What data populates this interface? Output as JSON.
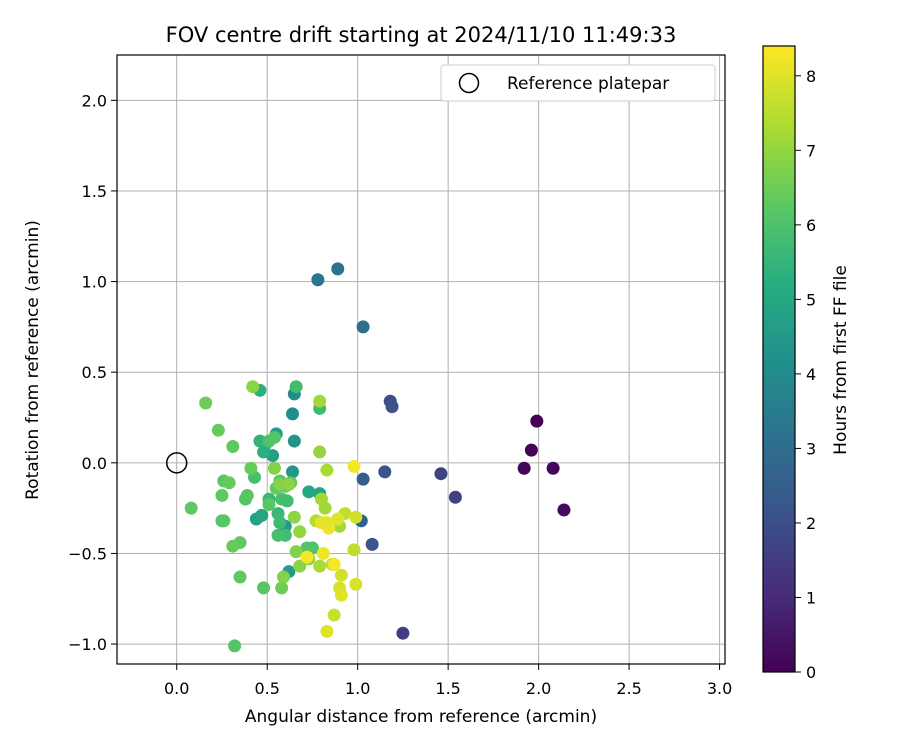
{
  "chart_data": {
    "type": "scatter",
    "title": "FOV centre drift starting at 2024/11/10 11:49:33",
    "xlabel": "Angular distance from reference (arcmin)",
    "ylabel": "Rotation from reference (arcmin)",
    "xlim": [
      -0.33,
      3.03
    ],
    "ylim": [
      -1.11,
      2.25
    ],
    "xticks": [
      0.0,
      0.5,
      1.0,
      1.5,
      2.0,
      2.5,
      3.0
    ],
    "xtick_labels": [
      "0.0",
      "0.5",
      "1.0",
      "1.5",
      "2.0",
      "2.5",
      "3.0"
    ],
    "yticks": [
      -1.0,
      -0.5,
      0.0,
      0.5,
      1.0,
      1.5,
      2.0
    ],
    "ytick_labels": [
      "−1.0",
      "−0.5",
      "0.0",
      "0.5",
      "1.0",
      "1.5",
      "2.0"
    ],
    "grid": true,
    "legend": {
      "position": "top-right",
      "entries": [
        "Reference platepar"
      ]
    },
    "reference_point": {
      "x": 0.0,
      "y": 0.0,
      "label": "Reference platepar"
    },
    "colorbar": {
      "label": "Hours from first FF file",
      "range": [
        0,
        8.4
      ],
      "ticks": [
        0,
        1,
        2,
        3,
        4,
        5,
        6,
        7,
        8
      ],
      "colormap": "viridis"
    },
    "points": [
      {
        "x": 1.99,
        "y": 0.23,
        "t": 0.05
      },
      {
        "x": 1.96,
        "y": 0.07,
        "t": 0.08
      },
      {
        "x": 1.92,
        "y": -0.03,
        "t": 0.12
      },
      {
        "x": 2.08,
        "y": -0.03,
        "t": 0.15
      },
      {
        "x": 2.14,
        "y": -0.26,
        "t": 0.2
      },
      {
        "x": 1.25,
        "y": -0.94,
        "t": 1.5
      },
      {
        "x": 1.54,
        "y": -0.19,
        "t": 1.6
      },
      {
        "x": 1.46,
        "y": -0.06,
        "t": 1.7
      },
      {
        "x": 1.18,
        "y": 0.34,
        "t": 2.0
      },
      {
        "x": 1.19,
        "y": 0.31,
        "t": 2.1
      },
      {
        "x": 1.15,
        "y": -0.05,
        "t": 2.2
      },
      {
        "x": 1.08,
        "y": -0.45,
        "t": 2.3
      },
      {
        "x": 1.02,
        "y": -0.32,
        "t": 2.6
      },
      {
        "x": 1.03,
        "y": -0.09,
        "t": 2.5
      },
      {
        "x": 1.03,
        "y": 0.75,
        "t": 3.1
      },
      {
        "x": 0.89,
        "y": 1.07,
        "t": 3.2
      },
      {
        "x": 0.78,
        "y": 1.01,
        "t": 3.3
      },
      {
        "x": 0.65,
        "y": 0.38,
        "t": 4.0
      },
      {
        "x": 0.64,
        "y": 0.27,
        "t": 4.1
      },
      {
        "x": 0.65,
        "y": 0.12,
        "t": 4.3
      },
      {
        "x": 0.64,
        "y": -0.05,
        "t": 4.4
      },
      {
        "x": 0.55,
        "y": 0.16,
        "t": 4.6
      },
      {
        "x": 0.53,
        "y": 0.04,
        "t": 4.7
      },
      {
        "x": 0.6,
        "y": -0.35,
        "t": 4.5
      },
      {
        "x": 0.62,
        "y": -0.6,
        "t": 4.6
      },
      {
        "x": 0.44,
        "y": -0.31,
        "t": 4.8
      },
      {
        "x": 0.47,
        "y": -0.29,
        "t": 4.9
      },
      {
        "x": 0.79,
        "y": -0.17,
        "t": 4.9
      },
      {
        "x": 0.73,
        "y": -0.16,
        "t": 5.0
      },
      {
        "x": 0.46,
        "y": 0.4,
        "t": 5.3
      },
      {
        "x": 0.46,
        "y": 0.12,
        "t": 5.5
      },
      {
        "x": 0.49,
        "y": 0.1,
        "t": 5.4
      },
      {
        "x": 0.48,
        "y": 0.06,
        "t": 5.3
      },
      {
        "x": 0.51,
        "y": -0.2,
        "t": 5.6
      },
      {
        "x": 0.56,
        "y": -0.28,
        "t": 5.6
      },
      {
        "x": 0.57,
        "y": -0.33,
        "t": 5.7
      },
      {
        "x": 0.6,
        "y": -0.4,
        "t": 5.8
      },
      {
        "x": 0.56,
        "y": -0.4,
        "t": 5.9
      },
      {
        "x": 0.58,
        "y": -0.2,
        "t": 5.9
      },
      {
        "x": 0.61,
        "y": -0.21,
        "t": 5.8
      },
      {
        "x": 0.43,
        "y": -0.08,
        "t": 5.9
      },
      {
        "x": 0.66,
        "y": 0.42,
        "t": 5.8
      },
      {
        "x": 0.79,
        "y": 0.3,
        "t": 5.7
      },
      {
        "x": 0.51,
        "y": 0.12,
        "t": 6.0
      },
      {
        "x": 0.54,
        "y": 0.14,
        "t": 6.1
      },
      {
        "x": 0.57,
        "y": -0.1,
        "t": 6.2
      },
      {
        "x": 0.55,
        "y": -0.14,
        "t": 6.3
      },
      {
        "x": 0.6,
        "y": -0.13,
        "t": 6.4
      },
      {
        "x": 0.63,
        "y": -0.11,
        "t": 6.3
      },
      {
        "x": 0.51,
        "y": -0.23,
        "t": 6.2
      },
      {
        "x": 0.75,
        "y": -0.47,
        "t": 6.0
      },
      {
        "x": 0.72,
        "y": -0.47,
        "t": 6.1
      },
      {
        "x": 0.35,
        "y": -0.44,
        "t": 6.3
      },
      {
        "x": 0.31,
        "y": -0.46,
        "t": 6.4
      },
      {
        "x": 0.35,
        "y": -0.63,
        "t": 6.3
      },
      {
        "x": 0.48,
        "y": -0.69,
        "t": 6.2
      },
      {
        "x": 0.58,
        "y": -0.69,
        "t": 6.5
      },
      {
        "x": 0.32,
        "y": -1.01,
        "t": 6.1
      },
      {
        "x": 0.38,
        "y": -0.2,
        "t": 6.1
      },
      {
        "x": 0.39,
        "y": -0.18,
        "t": 6.2
      },
      {
        "x": 0.25,
        "y": -0.32,
        "t": 6.1
      },
      {
        "x": 0.26,
        "y": -0.32,
        "t": 6.2
      },
      {
        "x": 0.25,
        "y": -0.18,
        "t": 6.3
      },
      {
        "x": 0.26,
        "y": -0.1,
        "t": 6.2
      },
      {
        "x": 0.29,
        "y": -0.11,
        "t": 6.4
      },
      {
        "x": 0.41,
        "y": -0.03,
        "t": 6.4
      },
      {
        "x": 0.31,
        "y": 0.09,
        "t": 6.3
      },
      {
        "x": 0.23,
        "y": 0.18,
        "t": 6.4
      },
      {
        "x": 0.16,
        "y": 0.33,
        "t": 6.5
      },
      {
        "x": 0.08,
        "y": -0.25,
        "t": 6.3
      },
      {
        "x": 0.42,
        "y": 0.42,
        "t": 6.9
      },
      {
        "x": 0.54,
        "y": -0.03,
        "t": 6.8
      },
      {
        "x": 0.57,
        "y": -0.12,
        "t": 6.8
      },
      {
        "x": 0.62,
        "y": -0.12,
        "t": 6.9
      },
      {
        "x": 0.65,
        "y": -0.3,
        "t": 6.9
      },
      {
        "x": 0.66,
        "y": -0.49,
        "t": 6.8
      },
      {
        "x": 0.68,
        "y": -0.57,
        "t": 6.9
      },
      {
        "x": 0.59,
        "y": -0.63,
        "t": 6.8
      },
      {
        "x": 0.73,
        "y": -0.53,
        "t": 6.9
      },
      {
        "x": 0.68,
        "y": -0.38,
        "t": 7.0
      },
      {
        "x": 0.79,
        "y": 0.06,
        "t": 7.0
      },
      {
        "x": 0.79,
        "y": 0.34,
        "t": 7.2
      },
      {
        "x": 0.83,
        "y": -0.04,
        "t": 7.3
      },
      {
        "x": 0.8,
        "y": -0.2,
        "t": 7.2
      },
      {
        "x": 0.82,
        "y": -0.25,
        "t": 7.2
      },
      {
        "x": 0.77,
        "y": -0.32,
        "t": 7.4
      },
      {
        "x": 0.79,
        "y": -0.57,
        "t": 7.3
      },
      {
        "x": 0.86,
        "y": -0.56,
        "t": 7.4
      },
      {
        "x": 0.9,
        "y": -0.35,
        "t": 7.2
      },
      {
        "x": 0.93,
        "y": -0.28,
        "t": 7.6
      },
      {
        "x": 0.98,
        "y": -0.48,
        "t": 7.6
      },
      {
        "x": 0.99,
        "y": -0.3,
        "t": 7.8
      },
      {
        "x": 0.91,
        "y": -0.62,
        "t": 7.8
      },
      {
        "x": 0.9,
        "y": -0.69,
        "t": 7.9
      },
      {
        "x": 0.87,
        "y": -0.84,
        "t": 7.7
      },
      {
        "x": 0.91,
        "y": -0.73,
        "t": 8.0
      },
      {
        "x": 0.99,
        "y": -0.67,
        "t": 7.9
      },
      {
        "x": 0.83,
        "y": -0.93,
        "t": 8.0
      },
      {
        "x": 0.89,
        "y": -0.31,
        "t": 8.0
      },
      {
        "x": 0.8,
        "y": -0.33,
        "t": 8.1
      },
      {
        "x": 0.84,
        "y": -0.36,
        "t": 8.2
      },
      {
        "x": 0.83,
        "y": -0.33,
        "t": 8.1
      },
      {
        "x": 0.81,
        "y": -0.5,
        "t": 8.2
      },
      {
        "x": 0.72,
        "y": -0.52,
        "t": 8.3
      },
      {
        "x": 0.98,
        "y": -0.02,
        "t": 8.3
      },
      {
        "x": 0.87,
        "y": -0.56,
        "t": 8.3
      }
    ]
  }
}
